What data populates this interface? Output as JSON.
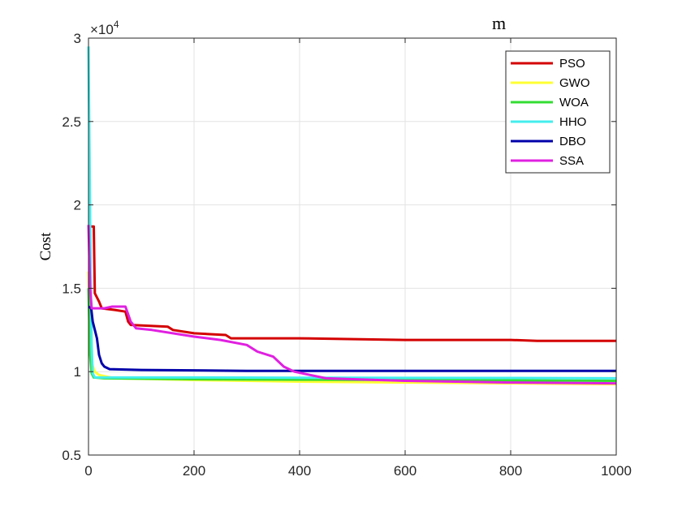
{
  "chart_data": {
    "type": "line",
    "title": "m",
    "xlabel": "",
    "ylabel": "Cost",
    "y_multiplier_label": "×10",
    "y_multiplier_exp": "4",
    "xlim": [
      0,
      1000
    ],
    "ylim": [
      0.5,
      3
    ],
    "x_ticks": [
      0,
      200,
      400,
      600,
      800,
      1000
    ],
    "y_ticks": [
      0.5,
      1,
      1.5,
      2,
      2.5,
      3
    ],
    "y_tick_labels": [
      "0.5",
      "1",
      "1.5",
      "2",
      "2.5",
      "3"
    ],
    "grid": true,
    "legend_position": "top-right",
    "series": [
      {
        "name": "PSO",
        "color": "#d40000",
        "points": [
          [
            0,
            1.87
          ],
          [
            10,
            1.87
          ],
          [
            12,
            1.47
          ],
          [
            20,
            1.42
          ],
          [
            25,
            1.38
          ],
          [
            50,
            1.37
          ],
          [
            70,
            1.36
          ],
          [
            75,
            1.3
          ],
          [
            80,
            1.28
          ],
          [
            150,
            1.27
          ],
          [
            160,
            1.25
          ],
          [
            200,
            1.23
          ],
          [
            260,
            1.22
          ],
          [
            270,
            1.2
          ],
          [
            400,
            1.2
          ],
          [
            600,
            1.19
          ],
          [
            800,
            1.19
          ],
          [
            850,
            1.185
          ],
          [
            1000,
            1.185
          ]
        ]
      },
      {
        "name": "GWO",
        "color": "#ffff33",
        "points": [
          [
            0,
            1.6
          ],
          [
            3,
            1.2
          ],
          [
            6,
            1.05
          ],
          [
            12,
            1.0
          ],
          [
            20,
            0.98
          ],
          [
            50,
            0.96
          ],
          [
            200,
            0.95
          ],
          [
            400,
            0.94
          ],
          [
            600,
            0.935
          ],
          [
            800,
            0.93
          ],
          [
            1000,
            0.925
          ]
        ]
      },
      {
        "name": "WOA",
        "color": "#33dd33",
        "points": [
          [
            0,
            1.5
          ],
          [
            3,
            1.1
          ],
          [
            6,
            0.99
          ],
          [
            10,
            0.965
          ],
          [
            30,
            0.96
          ],
          [
            200,
            0.955
          ],
          [
            400,
            0.952
          ],
          [
            600,
            0.95
          ],
          [
            1000,
            0.945
          ]
        ]
      },
      {
        "name": "HHO",
        "color": "#44eeee",
        "points": [
          [
            0,
            2.95
          ],
          [
            2,
            2.3
          ],
          [
            4,
            1.6
          ],
          [
            6,
            1.15
          ],
          [
            8,
            0.99
          ],
          [
            12,
            0.965
          ],
          [
            50,
            0.965
          ],
          [
            200,
            0.965
          ],
          [
            500,
            0.963
          ],
          [
            800,
            0.962
          ],
          [
            1000,
            0.96
          ]
        ]
      },
      {
        "name": "DBO",
        "color": "#0000aa",
        "points": [
          [
            0,
            1.39
          ],
          [
            5,
            1.38
          ],
          [
            8,
            1.3
          ],
          [
            12,
            1.25
          ],
          [
            16,
            1.2
          ],
          [
            20,
            1.1
          ],
          [
            25,
            1.05
          ],
          [
            30,
            1.03
          ],
          [
            40,
            1.015
          ],
          [
            100,
            1.01
          ],
          [
            300,
            1.005
          ],
          [
            600,
            1.005
          ],
          [
            1000,
            1.005
          ]
        ]
      },
      {
        "name": "SSA",
        "color": "#e020e0",
        "points": [
          [
            0,
            1.88
          ],
          [
            3,
            1.5
          ],
          [
            6,
            1.38
          ],
          [
            30,
            1.38
          ],
          [
            45,
            1.39
          ],
          [
            70,
            1.39
          ],
          [
            80,
            1.3
          ],
          [
            90,
            1.26
          ],
          [
            120,
            1.25
          ],
          [
            200,
            1.21
          ],
          [
            250,
            1.19
          ],
          [
            300,
            1.16
          ],
          [
            320,
            1.12
          ],
          [
            350,
            1.09
          ],
          [
            370,
            1.03
          ],
          [
            390,
            1.0
          ],
          [
            420,
            0.98
          ],
          [
            450,
            0.96
          ],
          [
            500,
            0.955
          ],
          [
            600,
            0.945
          ],
          [
            800,
            0.935
          ],
          [
            1000,
            0.93
          ]
        ]
      }
    ]
  }
}
